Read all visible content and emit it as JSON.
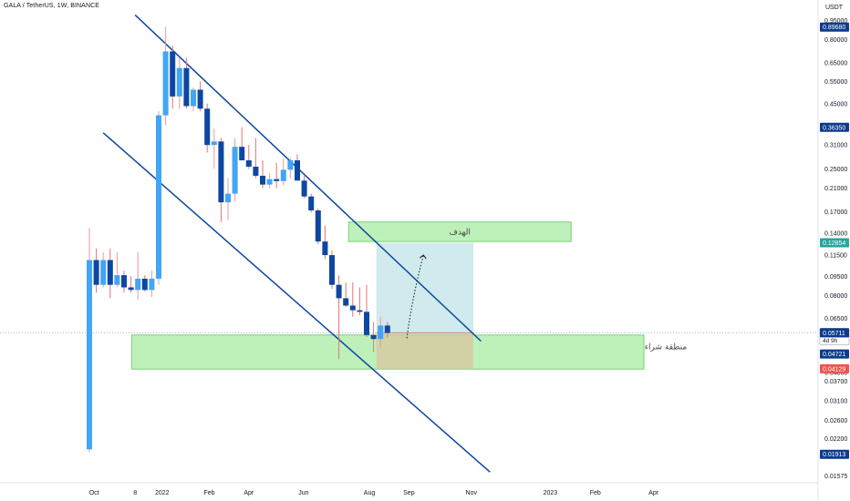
{
  "header": {
    "symbol": "GALA / TetherUS",
    "interval": "1W",
    "exchange": "BINANCE"
  },
  "price_axis": {
    "unit": "USDT",
    "ticks": [
      "0.95000",
      "0.80000",
      "0.65000",
      "0.55000",
      "0.45000",
      "0.31000",
      "0.25000",
      "0.21000",
      "0.17000",
      "0.14000",
      "0.11500",
      "0.09500",
      "0.08000",
      "0.06500",
      "0.04000",
      "0.03700",
      "0.03100",
      "0.02600",
      "0.02200",
      "0.01575"
    ],
    "badges": [
      {
        "text": "0.89680",
        "color": "#0d3b8c"
      },
      {
        "text": "0.36350",
        "color": "#0d3b8c"
      },
      {
        "text": "0.12854",
        "color": "#26a69a"
      },
      {
        "text": "0.05714",
        "sub": "4d 9h",
        "color": "#ffffff",
        "text_color": "#131722"
      },
      {
        "text": "0.05711",
        "color": "#0d3b8c"
      },
      {
        "text": "0.04721",
        "color": "#0d3b8c"
      },
      {
        "text": "0.04129",
        "color": "#ef5350"
      },
      {
        "text": "0.01913",
        "color": "#0d3b8c"
      }
    ]
  },
  "time_axis": {
    "labels": [
      "Oct",
      "8",
      "2022",
      "Feb",
      "Apr",
      "Jun",
      "Aug",
      "Sep",
      "Nov",
      "2023",
      "Feb",
      "Apr"
    ]
  },
  "colors": {
    "up": "#42a5f5",
    "down": "#0d47a1",
    "wick_up": "#ef9a9a",
    "wick_down": "#e57373",
    "channel": "#0d47a1",
    "zone_fill": "#b7f0b1",
    "zone_stroke": "#7bd17a",
    "target_fill": "#cde9ec",
    "stop_fill": "#d8c6a0"
  },
  "annotations": {
    "target_label": "الهدف",
    "buy_zone_label": "منطقة شراء"
  },
  "chart_data": {
    "type": "candlestick",
    "title": "GALA / TetherUS, 1W, BINANCE",
    "ylabel": "USDT",
    "scale": "log",
    "ylim": [
      0.0148,
      1.02
    ],
    "candles": [
      {
        "o": 0.02,
        "h": 0.147,
        "l": 0.0195,
        "c": 0.11
      },
      {
        "o": 0.11,
        "h": 0.122,
        "l": 0.082,
        "c": 0.088
      },
      {
        "o": 0.088,
        "h": 0.118,
        "l": 0.086,
        "c": 0.11
      },
      {
        "o": 0.11,
        "h": 0.122,
        "l": 0.078,
        "c": 0.088
      },
      {
        "o": 0.088,
        "h": 0.118,
        "l": 0.086,
        "c": 0.096
      },
      {
        "o": 0.096,
        "h": 0.1,
        "l": 0.082,
        "c": 0.086
      },
      {
        "o": 0.086,
        "h": 0.095,
        "l": 0.082,
        "c": 0.084
      },
      {
        "o": 0.084,
        "h": 0.118,
        "l": 0.077,
        "c": 0.093
      },
      {
        "o": 0.093,
        "h": 0.096,
        "l": 0.083,
        "c": 0.084
      },
      {
        "o": 0.084,
        "h": 0.1,
        "l": 0.079,
        "c": 0.093
      },
      {
        "o": 0.093,
        "h": 0.42,
        "l": 0.088,
        "c": 0.405
      },
      {
        "o": 0.405,
        "h": 0.897,
        "l": 0.37,
        "c": 0.72
      },
      {
        "o": 0.72,
        "h": 0.76,
        "l": 0.43,
        "c": 0.48
      },
      {
        "o": 0.48,
        "h": 0.68,
        "l": 0.43,
        "c": 0.62
      },
      {
        "o": 0.62,
        "h": 0.68,
        "l": 0.43,
        "c": 0.44
      },
      {
        "o": 0.44,
        "h": 0.52,
        "l": 0.42,
        "c": 0.51
      },
      {
        "o": 0.51,
        "h": 0.55,
        "l": 0.42,
        "c": 0.43
      },
      {
        "o": 0.43,
        "h": 0.45,
        "l": 0.29,
        "c": 0.31
      },
      {
        "o": 0.31,
        "h": 0.36,
        "l": 0.25,
        "c": 0.32
      },
      {
        "o": 0.32,
        "h": 0.33,
        "l": 0.155,
        "c": 0.185
      },
      {
        "o": 0.185,
        "h": 0.23,
        "l": 0.157,
        "c": 0.2
      },
      {
        "o": 0.2,
        "h": 0.33,
        "l": 0.186,
        "c": 0.305
      },
      {
        "o": 0.305,
        "h": 0.364,
        "l": 0.27,
        "c": 0.27
      },
      {
        "o": 0.27,
        "h": 0.31,
        "l": 0.25,
        "c": 0.255
      },
      {
        "o": 0.255,
        "h": 0.33,
        "l": 0.23,
        "c": 0.235
      },
      {
        "o": 0.235,
        "h": 0.27,
        "l": 0.21,
        "c": 0.217
      },
      {
        "o": 0.217,
        "h": 0.24,
        "l": 0.21,
        "c": 0.228
      },
      {
        "o": 0.228,
        "h": 0.264,
        "l": 0.21,
        "c": 0.224
      },
      {
        "o": 0.224,
        "h": 0.275,
        "l": 0.215,
        "c": 0.248
      },
      {
        "o": 0.248,
        "h": 0.275,
        "l": 0.23,
        "c": 0.27
      },
      {
        "o": 0.27,
        "h": 0.285,
        "l": 0.23,
        "c": 0.225
      },
      {
        "o": 0.225,
        "h": 0.235,
        "l": 0.192,
        "c": 0.195
      },
      {
        "o": 0.195,
        "h": 0.2,
        "l": 0.169,
        "c": 0.172
      },
      {
        "o": 0.172,
        "h": 0.175,
        "l": 0.127,
        "c": 0.13
      },
      {
        "o": 0.13,
        "h": 0.15,
        "l": 0.111,
        "c": 0.115
      },
      {
        "o": 0.115,
        "h": 0.12,
        "l": 0.085,
        "c": 0.088
      },
      {
        "o": 0.088,
        "h": 0.096,
        "l": 0.045,
        "c": 0.078
      },
      {
        "o": 0.078,
        "h": 0.09,
        "l": 0.072,
        "c": 0.073
      },
      {
        "o": 0.073,
        "h": 0.09,
        "l": 0.066,
        "c": 0.07
      },
      {
        "o": 0.07,
        "h": 0.086,
        "l": 0.067,
        "c": 0.069
      },
      {
        "o": 0.069,
        "h": 0.088,
        "l": 0.055,
        "c": 0.056
      },
      {
        "o": 0.056,
        "h": 0.063,
        "l": 0.048,
        "c": 0.054
      },
      {
        "o": 0.054,
        "h": 0.066,
        "l": 0.05,
        "c": 0.061
      },
      {
        "o": 0.061,
        "h": 0.063,
        "l": 0.0547,
        "c": 0.0571
      }
    ],
    "lines": [
      {
        "name": "channel-upper",
        "from": {
          "i": 6.6,
          "price": 1.0
        },
        "to": {
          "i": 56.5,
          "price": 0.053
        }
      },
      {
        "name": "channel-lower",
        "from": {
          "i": 2.0,
          "price": 0.346
        },
        "to": {
          "i": 57.8,
          "price": 0.0163
        }
      }
    ],
    "zones": [
      {
        "name": "target-zone",
        "from_i": 37.4,
        "to_i": 69.5,
        "top": 0.155,
        "bottom": 0.13
      },
      {
        "name": "buy-zone",
        "from_i": 6.1,
        "to_i": 80.0,
        "top": 0.056,
        "bottom": 0.0412
      }
    ],
    "position": {
      "from_i": 41.4,
      "to_i": 55.4,
      "entry": 0.0571,
      "target": 0.1285,
      "stop": 0.0413
    },
    "projection": {
      "from_i": 45.8,
      "from_price": 0.0544,
      "to_i": 48.2,
      "to_price": 0.115
    },
    "last_price_line": 0.05714,
    "time_axis_positions": [
      0.68,
      6.6,
      10.5,
      17.3,
      23.0,
      30.9,
      40.4,
      46.1,
      55.1,
      66.5,
      73.0,
      81.4
    ]
  }
}
